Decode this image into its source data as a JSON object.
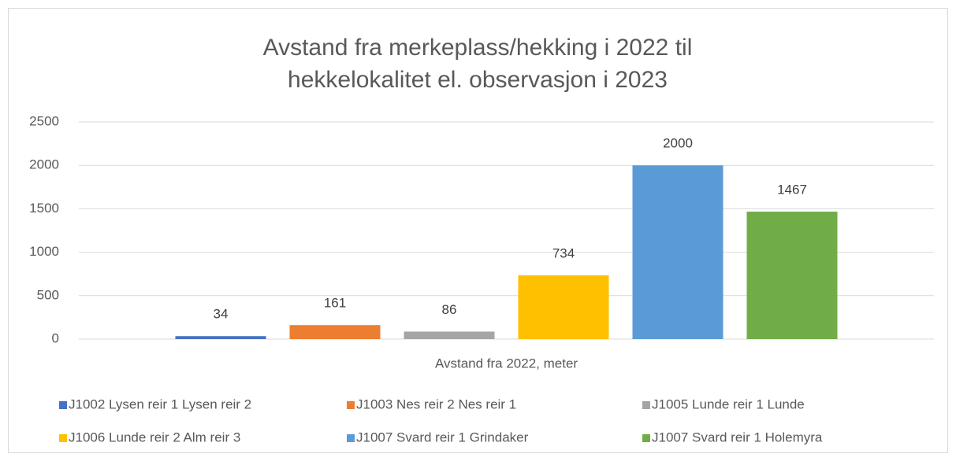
{
  "chart_data": {
    "type": "bar",
    "title": [
      "Avstand fra merkeplass/hekking i 2022 til",
      "hekkelokalitet el. observasjon i 2023"
    ],
    "categories": [
      "Avstand fra 2022, meter"
    ],
    "series": [
      {
        "name": "J1002 Lysen reir 1 Lysen reir 2",
        "color": "#4472c4",
        "values": [
          34
        ]
      },
      {
        "name": "J1003 Nes reir 2 Nes reir 1",
        "color": "#ed7d31",
        "values": [
          161
        ]
      },
      {
        "name": "J1005 Lunde reir 1 Lunde",
        "color": "#a5a5a5",
        "values": [
          86
        ]
      },
      {
        "name": "J1006 Lunde reir 2 Alm reir 3",
        "color": "#ffc000",
        "values": [
          734
        ]
      },
      {
        "name": "J1007 Svard reir 1 Grindaker",
        "color": "#5b9bd5",
        "values": [
          2000
        ]
      },
      {
        "name": "J1007 Svard reir 1 Holemyra",
        "color": "#70ad47",
        "values": [
          1467
        ]
      }
    ],
    "ylim": [
      0,
      2500
    ],
    "yticks": [
      0,
      500,
      1000,
      1500,
      2000,
      2500
    ],
    "grid": true,
    "legend": "bottom"
  }
}
